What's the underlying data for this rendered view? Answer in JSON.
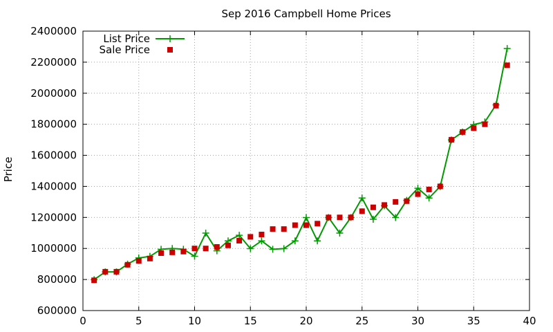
{
  "chart_data": {
    "type": "line",
    "title": "Sep 2016 Campbell Home Prices",
    "xlabel": "",
    "ylabel": "Price",
    "xlim": [
      0,
      40
    ],
    "ylim": [
      600000,
      2400000
    ],
    "xticks": [
      0,
      5,
      10,
      15,
      20,
      25,
      30,
      35,
      40
    ],
    "yticks": [
      600000,
      800000,
      1000000,
      1200000,
      1400000,
      1600000,
      1800000,
      2000000,
      2200000,
      2400000
    ],
    "grid": true,
    "legend_position": "top-left",
    "series": [
      {
        "name": "List Price",
        "style": "line-points",
        "color": "#009900",
        "x": [
          1,
          2,
          3,
          4,
          5,
          6,
          7,
          8,
          9,
          10,
          11,
          12,
          13,
          14,
          15,
          16,
          17,
          18,
          19,
          20,
          21,
          22,
          23,
          24,
          25,
          26,
          27,
          28,
          29,
          30,
          31,
          32,
          33,
          34,
          35,
          36,
          37,
          38
        ],
        "values": [
          799000,
          849000,
          849000,
          899000,
          939000,
          949000,
          995000,
          1000000,
          995000,
          950000,
          1099000,
          985000,
          1049000,
          1085000,
          999000,
          1049000,
          995000,
          999000,
          1049000,
          1199000,
          1049000,
          1199000,
          1099000,
          1199000,
          1325000,
          1188000,
          1275000,
          1199000,
          1310000,
          1388000,
          1325000,
          1399000,
          1699000,
          1750000,
          1798000,
          1815000,
          1925000,
          2288000
        ]
      },
      {
        "name": "Sale Price",
        "style": "points",
        "color": "#cc0000",
        "x": [
          1,
          2,
          3,
          4,
          5,
          6,
          7,
          8,
          9,
          10,
          11,
          12,
          13,
          14,
          15,
          16,
          17,
          18,
          19,
          20,
          21,
          22,
          23,
          24,
          25,
          26,
          27,
          28,
          29,
          30,
          31,
          32,
          33,
          34,
          35,
          36,
          37,
          38
        ],
        "values": [
          795000,
          850000,
          850000,
          895000,
          920000,
          935000,
          970000,
          975000,
          980000,
          1000000,
          1000000,
          1010000,
          1020000,
          1050000,
          1075000,
          1090000,
          1125000,
          1125000,
          1150000,
          1150000,
          1160000,
          1200000,
          1200000,
          1200000,
          1240000,
          1265000,
          1280000,
          1300000,
          1305000,
          1350000,
          1380000,
          1400000,
          1700000,
          1750000,
          1775000,
          1800000,
          1920000,
          2180000
        ]
      }
    ]
  }
}
